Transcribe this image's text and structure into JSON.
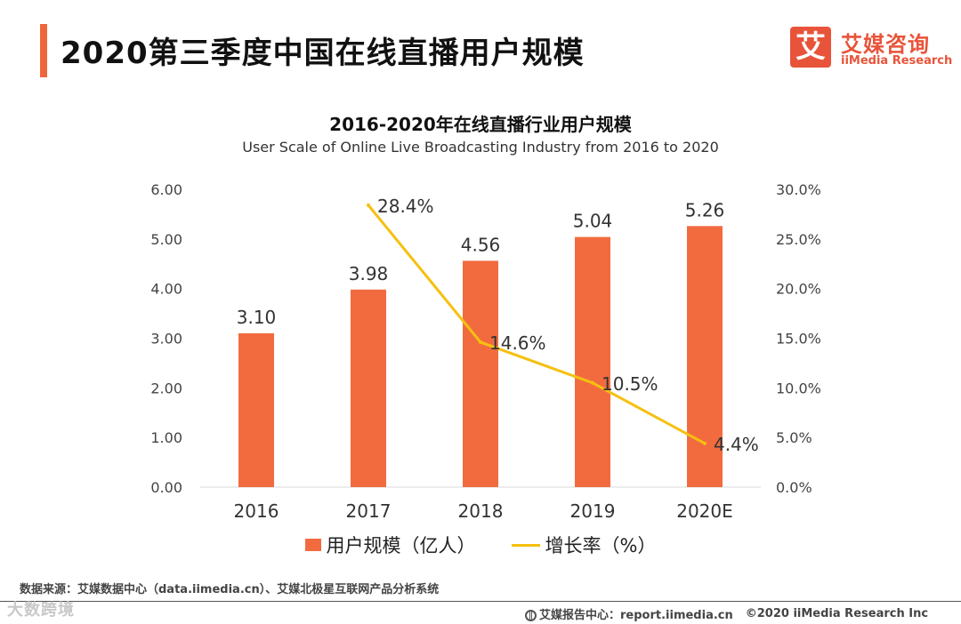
{
  "header": {
    "title": "2020第三季度中国在线直播用户规模",
    "brand_logo_char": "艾",
    "brand_cn": "艾媒咨询",
    "brand_en": "iiMedia Research"
  },
  "colors": {
    "accent": "#f0663c",
    "bar": "#f26b3f",
    "line": "#f5c010",
    "brand": "#e8543a"
  },
  "chart_data": {
    "type": "bar",
    "title": "2016-2020年在线直播行业用户规模",
    "subtitle": "User Scale of Online Live Broadcasting Industry from 2016 to 2020",
    "categories": [
      "2016",
      "2017",
      "2018",
      "2019",
      "2020E"
    ],
    "series": [
      {
        "name": "用户规模（亿人）",
        "type": "bar",
        "axis": "left",
        "values": [
          3.1,
          3.98,
          4.56,
          5.04,
          5.26
        ],
        "labels": [
          "3.10",
          "3.98",
          "4.56",
          "5.04",
          "5.26"
        ]
      },
      {
        "name": "增长率（%）",
        "type": "line",
        "axis": "right",
        "values": [
          null,
          28.4,
          14.6,
          10.5,
          4.4
        ],
        "labels": [
          null,
          "28.4%",
          "14.6%",
          "10.5%",
          "4.4%"
        ]
      }
    ],
    "y_left": {
      "min": 0,
      "max": 6,
      "ticks": [
        "0.00",
        "1.00",
        "2.00",
        "3.00",
        "4.00",
        "5.00",
        "6.00"
      ]
    },
    "y_right": {
      "min": 0,
      "max": 30,
      "ticks": [
        "0.0%",
        "5.0%",
        "10.0%",
        "15.0%",
        "20.0%",
        "25.0%",
        "30.0%"
      ]
    },
    "grid": false,
    "legend": "bottom-center"
  },
  "footer": {
    "source": "数据来源：艾媒数据中心（data.iimedia.cn）、艾媒北极星互联网产品分析系统",
    "report_center": "艾媒报告中心：report.iimedia.cn",
    "copyright": "©2020  iiMedia Research  Inc",
    "watermark": "大数跨境"
  }
}
